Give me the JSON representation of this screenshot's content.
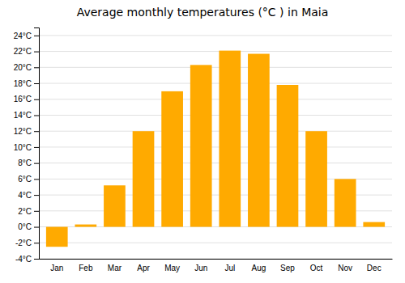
{
  "chart_data": {
    "type": "bar",
    "title": "Average monthly temperatures (°C ) in Maia",
    "categories": [
      "Jan",
      "Feb",
      "Mar",
      "Apr",
      "May",
      "Jun",
      "Jul",
      "Aug",
      "Sep",
      "Oct",
      "Nov",
      "Dec"
    ],
    "values": [
      -2.5,
      0.3,
      5.2,
      12.0,
      17.0,
      20.3,
      22.1,
      21.7,
      17.8,
      12.0,
      6.0,
      0.6
    ],
    "color": "#FFAA00",
    "ylim": [
      -4,
      25
    ],
    "yticks": [
      {
        "value": -4,
        "label": "-4°C"
      },
      {
        "value": -2,
        "label": "-2°C"
      },
      {
        "value": 0,
        "label": "0°C"
      },
      {
        "value": 2,
        "label": "2°C"
      },
      {
        "value": 4,
        "label": "4°C"
      },
      {
        "value": 6,
        "label": "6°C"
      },
      {
        "value": 8,
        "label": "8°C"
      },
      {
        "value": 10,
        "label": "10°C"
      },
      {
        "value": 12,
        "label": "12°C"
      },
      {
        "value": 14,
        "label": "14°C"
      },
      {
        "value": 16,
        "label": "16°C"
      },
      {
        "value": 18,
        "label": "18°C"
      },
      {
        "value": 20,
        "label": "20°C"
      },
      {
        "value": 22,
        "label": "22°C"
      },
      {
        "value": 24,
        "label": "24°C"
      }
    ],
    "grid": true
  }
}
